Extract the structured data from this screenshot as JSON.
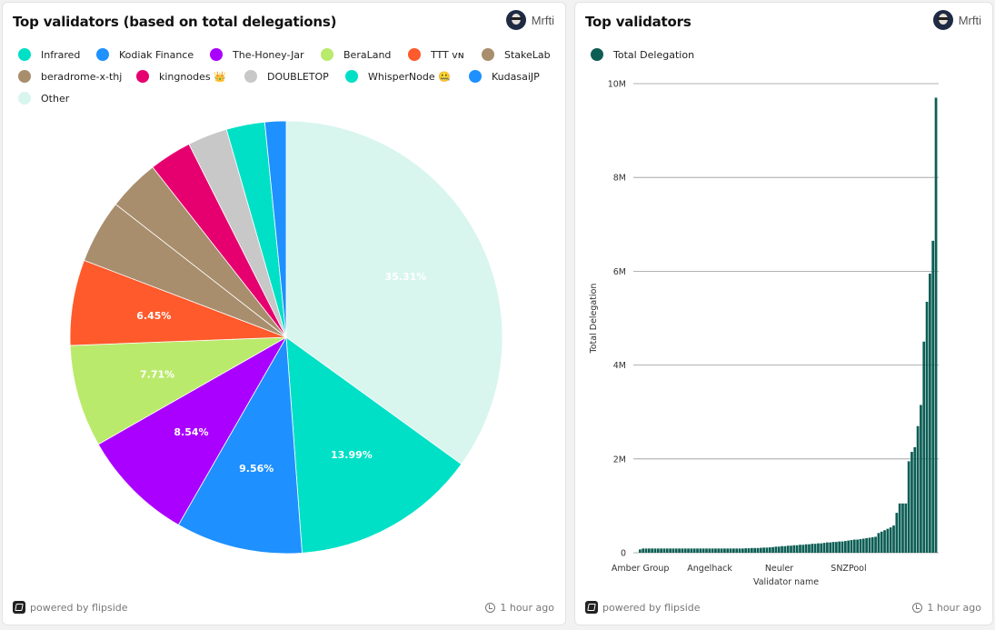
{
  "pie_card": {
    "title": "Top validators (based on total delegations)",
    "author": "Mrfti",
    "footer_left": "powered by flipside",
    "footer_right": "1 hour ago"
  },
  "bar_card": {
    "title": "Top validators",
    "author": "Mrfti",
    "footer_left": "powered by flipside",
    "footer_right": "1 hour ago"
  },
  "chart_data": [
    {
      "type": "pie",
      "title": "Top validators (based on total delegations)",
      "legend_position": "top",
      "categories": [
        "Infrared",
        "Kodiak Finance",
        "The-Honey-Jar",
        "BeraLand",
        "TTT ᴠɴ",
        "StakeLab",
        "beradrome-x-thj",
        "kingnodes 👑",
        "DOUBLETOP",
        "WhisperNode 🤐",
        "KudasaiJP",
        "Other"
      ],
      "values": [
        13.99,
        9.56,
        8.54,
        7.71,
        6.45,
        4.8,
        3.9,
        3.2,
        3.0,
        2.9,
        1.6,
        35.31
      ],
      "labels": [
        "13.99%",
        "9.56%",
        "8.54%",
        "7.71%",
        "6.45%",
        "",
        "",
        "",
        "",
        "",
        "",
        "35.31%"
      ],
      "colors": [
        "#00e0c6",
        "#1e90ff",
        "#aa00ff",
        "#baea6c",
        "#ff5a2b",
        "#a88e6d",
        "#a88e6d",
        "#e6006f",
        "#c8c8c8",
        "#00e0c6",
        "#1e90ff",
        "#d8f5ee"
      ]
    },
    {
      "type": "bar",
      "title": "Top validators",
      "legend": [
        "Total Delegation"
      ],
      "series_color": "#0c5e55",
      "xlabel": "Validator name",
      "ylabel": "Total Delegation",
      "ylim": [
        0,
        10000000
      ],
      "yticks": [
        0,
        2000000,
        4000000,
        6000000,
        8000000,
        10000000
      ],
      "ytick_labels": [
        "0",
        "2M",
        "4M",
        "6M",
        "8M",
        "10M"
      ],
      "xtick_labels": [
        {
          "label": "Amber Group",
          "index": 0
        },
        {
          "label": "Angelhack",
          "index": 23
        },
        {
          "label": "Neuler",
          "index": 46
        },
        {
          "label": "SNZPool",
          "index": 69
        }
      ],
      "values": [
        70000,
        90000,
        90000,
        90000,
        90000,
        90000,
        90000,
        90000,
        90000,
        90000,
        90000,
        90000,
        90000,
        90000,
        90000,
        90000,
        90000,
        90000,
        90000,
        90000,
        90000,
        90000,
        90000,
        90000,
        90000,
        90000,
        90000,
        90000,
        90000,
        90000,
        90000,
        90000,
        90000,
        90000,
        90000,
        95000,
        95000,
        100000,
        100000,
        100000,
        105000,
        110000,
        110000,
        115000,
        120000,
        130000,
        130000,
        140000,
        140000,
        150000,
        150000,
        160000,
        160000,
        170000,
        170000,
        180000,
        180000,
        190000,
        190000,
        200000,
        200000,
        210000,
        220000,
        220000,
        230000,
        230000,
        240000,
        240000,
        250000,
        260000,
        270000,
        280000,
        280000,
        290000,
        300000,
        310000,
        320000,
        330000,
        340000,
        420000,
        450000,
        480000,
        510000,
        540000,
        580000,
        850000,
        1050000,
        1050000,
        1050000,
        1950000,
        2150000,
        2250000,
        2700000,
        3150000,
        4500000,
        5350000,
        5950000,
        6650000,
        9700000
      ]
    }
  ]
}
